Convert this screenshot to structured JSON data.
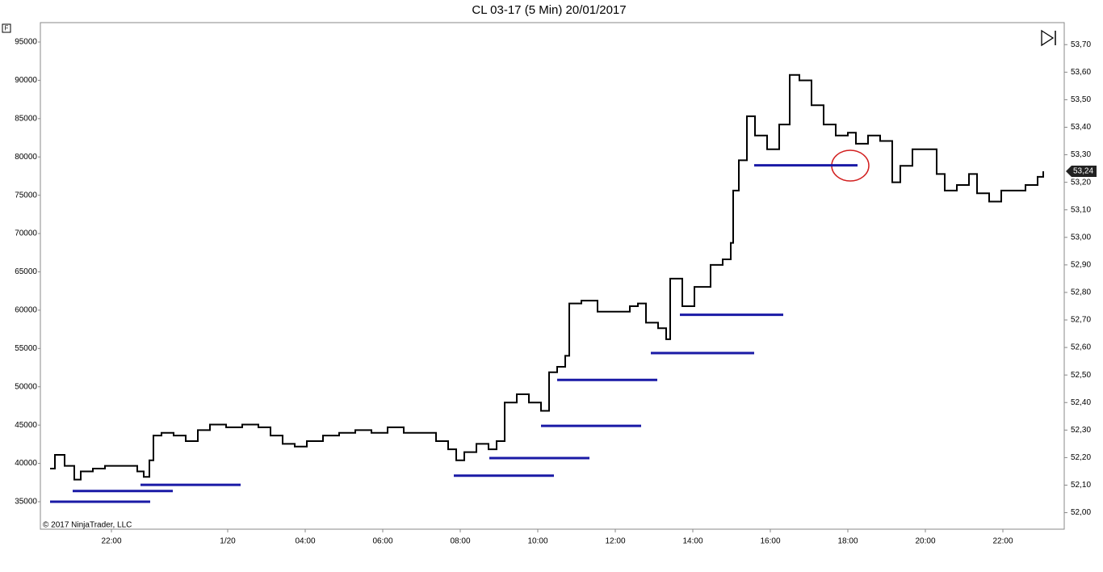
{
  "chart_data": {
    "type": "line",
    "title": "CL 03-17 (5 Min)  20/01/2017",
    "copyright": "© 2017 NinjaTrader, LLC",
    "panel_label": "F",
    "xlim": [
      -3,
      314
    ],
    "xticks": [
      {
        "value": 19,
        "label": "22:00"
      },
      {
        "value": 55,
        "label": "1/20"
      },
      {
        "value": 79,
        "label": "04:00"
      },
      {
        "value": 103,
        "label": "06:00"
      },
      {
        "value": 127,
        "label": "08:00"
      },
      {
        "value": 151,
        "label": "10:00"
      },
      {
        "value": 175,
        "label": "12:00"
      },
      {
        "value": 199,
        "label": "14:00"
      },
      {
        "value": 223,
        "label": "16:00"
      },
      {
        "value": 247,
        "label": "18:00"
      },
      {
        "value": 271,
        "label": "20:00"
      },
      {
        "value": 295,
        "label": "22:00"
      }
    ],
    "ylim": [
      31415,
      97530
    ],
    "yticks": [
      35000,
      40000,
      45000,
      50000,
      55000,
      60000,
      65000,
      70000,
      75000,
      80000,
      85000,
      90000,
      95000
    ],
    "y2lim": [
      51.94,
      53.78
    ],
    "y2ticks": [
      {
        "value": 52.0,
        "label": "52,00"
      },
      {
        "value": 52.1,
        "label": "52,10"
      },
      {
        "value": 52.2,
        "label": "52,20"
      },
      {
        "value": 52.3,
        "label": "52,30"
      },
      {
        "value": 52.4,
        "label": "52,40"
      },
      {
        "value": 52.5,
        "label": "52,50"
      },
      {
        "value": 52.6,
        "label": "52,60"
      },
      {
        "value": 52.7,
        "label": "52,70"
      },
      {
        "value": 52.8,
        "label": "52,80"
      },
      {
        "value": 52.9,
        "label": "52,90"
      },
      {
        "value": 53.0,
        "label": "53,00"
      },
      {
        "value": 53.1,
        "label": "53,10"
      },
      {
        "value": 53.2,
        "label": "53,20"
      },
      {
        "value": 53.3,
        "label": "53,30"
      },
      {
        "value": 53.4,
        "label": "53,40"
      },
      {
        "value": 53.5,
        "label": "53,50"
      },
      {
        "value": 53.6,
        "label": "53,60"
      },
      {
        "value": 53.7,
        "label": "53,70"
      }
    ],
    "last_price": {
      "value": 53.24,
      "label": "53,24"
    },
    "series": [
      {
        "axis": "y2",
        "color": "#000000",
        "x": [
          0,
          1.5,
          4.5,
          7.5,
          9.5,
          13.25,
          17,
          22,
          27,
          29,
          30.75,
          32,
          34.5,
          38.25,
          42,
          45.75,
          49.5,
          54.5,
          59.5,
          64.5,
          68.25,
          72,
          75.75,
          79.5,
          84.5,
          89.5,
          94.5,
          99.5,
          104.5,
          109.5,
          114.5,
          119.5,
          123.25,
          125.75,
          128.25,
          132,
          135.75,
          138.25,
          140.75,
          144.5,
          148.25,
          152,
          154.5,
          157,
          159.5,
          160.75,
          164.5,
          169.5,
          174.5,
          179.5,
          182,
          184.5,
          188.25,
          190.75,
          192,
          195.75,
          199.5,
          204.5,
          208.25,
          210.75,
          211.5,
          213.25,
          215.75,
          218.25,
          222,
          225.75,
          229,
          232,
          235.75,
          239.5,
          243.25,
          247,
          249.5,
          253.25,
          257,
          260.75,
          263.25,
          267,
          270.75,
          274.5,
          277,
          280.75,
          284.5,
          287,
          290.75,
          294.5,
          298.25,
          302,
          305.75,
          307.5
        ],
        "values": [
          52.16,
          52.21,
          52.17,
          52.12,
          52.15,
          52.16,
          52.17,
          52.17,
          52.15,
          52.13,
          52.19,
          52.28,
          52.29,
          52.28,
          52.26,
          52.3,
          52.32,
          52.31,
          52.32,
          52.31,
          52.28,
          52.25,
          52.24,
          52.26,
          52.28,
          52.29,
          52.3,
          52.29,
          52.31,
          52.29,
          52.29,
          52.26,
          52.23,
          52.19,
          52.22,
          52.25,
          52.23,
          52.26,
          52.4,
          52.43,
          52.4,
          52.37,
          52.51,
          52.53,
          52.57,
          52.76,
          52.77,
          52.73,
          52.73,
          52.75,
          52.76,
          52.69,
          52.67,
          52.63,
          52.85,
          52.75,
          52.82,
          52.9,
          52.92,
          52.98,
          53.17,
          53.28,
          53.44,
          53.37,
          53.32,
          53.41,
          53.59,
          53.57,
          53.48,
          53.41,
          53.37,
          53.38,
          53.34,
          53.37,
          53.35,
          53.2,
          53.26,
          53.32,
          53.32,
          53.23,
          53.17,
          53.19,
          53.23,
          53.16,
          53.13,
          53.17,
          53.17,
          53.19,
          53.22,
          53.24
        ]
      }
    ],
    "levels": {
      "color": "#1a1aa6",
      "values": [
        35000,
        36400,
        37200,
        38400,
        40700,
        44900,
        50900,
        54400,
        59400,
        78900
      ],
      "x_start": [
        0,
        7,
        28,
        125,
        136,
        152,
        157,
        186,
        195,
        218
      ],
      "x_end": [
        31,
        38,
        59,
        156,
        167,
        183,
        188,
        218,
        227,
        250
      ]
    }
  }
}
